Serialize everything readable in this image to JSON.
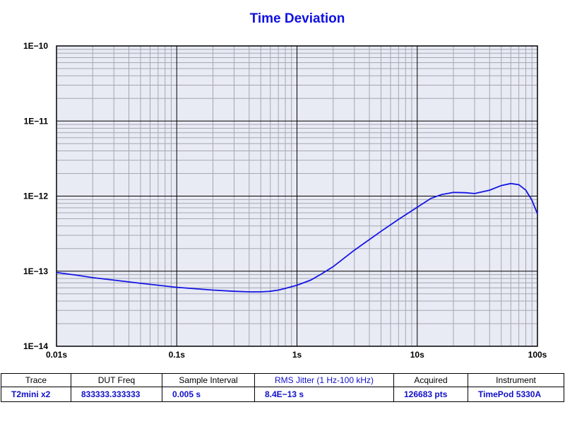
{
  "chart_data": {
    "type": "line",
    "title": "Time Deviation",
    "xlabel": "",
    "ylabel": "",
    "x_scale": "log",
    "y_scale": "log",
    "xlim": [
      0.01,
      100
    ],
    "ylim": [
      1e-14,
      1e-10
    ],
    "x_tick_labels": [
      "0.01s",
      "0.1s",
      "1s",
      "10s",
      "100s"
    ],
    "y_tick_labels": [
      "1E−10",
      "1E−11",
      "1E−12",
      "1E−13",
      "1E−14"
    ],
    "grid": true,
    "background_color": "#e8eaf4",
    "line_color": "#1414e6",
    "series": [
      {
        "x": [
          0.01,
          0.015,
          0.02,
          0.03,
          0.05,
          0.07,
          0.1,
          0.15,
          0.2,
          0.3,
          0.4,
          0.5,
          0.6,
          0.7,
          0.8,
          1.0,
          1.3,
          1.6,
          2.0,
          3.0,
          5.0,
          7.0,
          10.0,
          13.0,
          16.0,
          20.0,
          25.0,
          30.0,
          40.0,
          50.0,
          60.0,
          70.0,
          80.0,
          90.0,
          100.0
        ],
        "y": [
          9.6e-14,
          8.8e-14,
          8.2e-14,
          7.6e-14,
          6.9e-14,
          6.5e-14,
          6.1e-14,
          5.8e-14,
          5.6e-14,
          5.4e-14,
          5.3e-14,
          5.3e-14,
          5.4e-14,
          5.6e-14,
          5.9e-14,
          6.5e-14,
          7.6e-14,
          9.2e-14,
          1.15e-13,
          1.9e-13,
          3.4e-13,
          4.9e-13,
          7.1e-13,
          9.3e-13,
          1.05e-12,
          1.12e-12,
          1.11e-12,
          1.08e-12,
          1.2e-12,
          1.38e-12,
          1.47e-12,
          1.42e-12,
          1.2e-12,
          8.8e-13,
          5.8e-13
        ]
      }
    ]
  },
  "table": {
    "headers": [
      "Trace",
      "DUT Freq",
      "Sample Interval",
      "RMS Jitter (1 Hz-100 kHz)",
      "Acquired",
      "Instrument"
    ],
    "row": [
      "T2mini x2",
      "833333.333333",
      "0.005 s",
      "8.4E−13 s",
      "126683 pts",
      "TimePod 5330A"
    ]
  }
}
